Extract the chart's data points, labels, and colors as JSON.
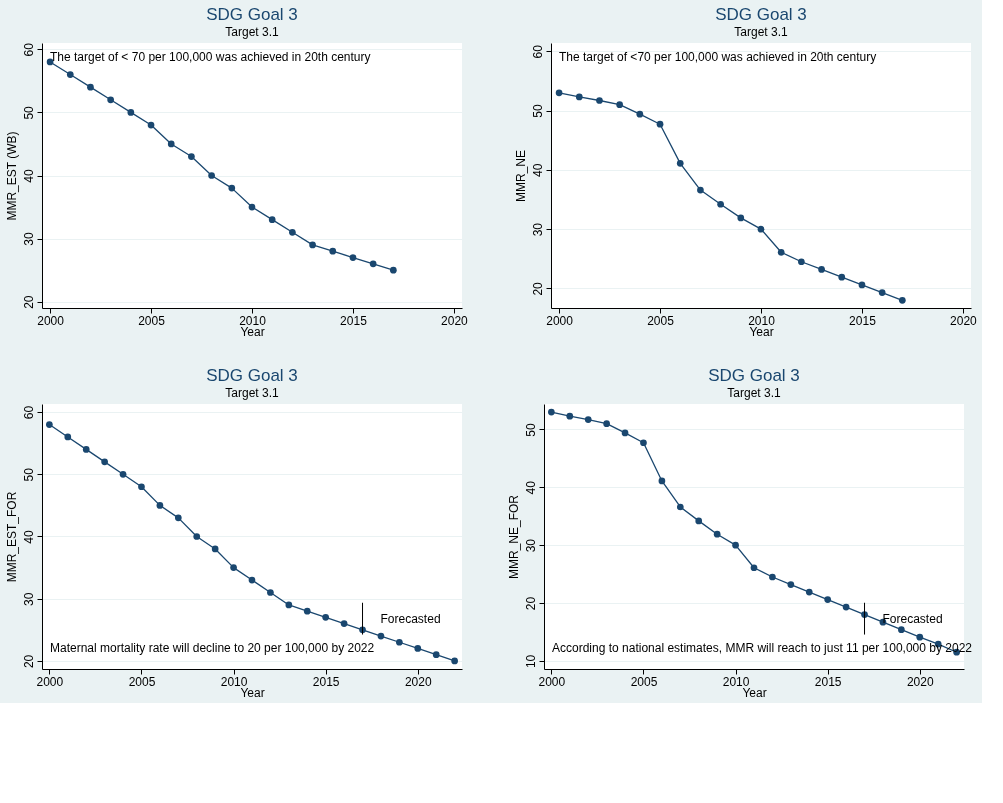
{
  "chart_data": [
    {
      "type": "line",
      "title": "SDG Goal 3",
      "subtitle": "Target 3.1",
      "xlabel": "Year",
      "ylabel": "MMR_EST (WB)",
      "marker": "circle",
      "grid": "y",
      "color": "#1a476f",
      "x": [
        2000,
        2001,
        2002,
        2003,
        2004,
        2005,
        2006,
        2007,
        2008,
        2009,
        2010,
        2011,
        2012,
        2013,
        2014,
        2015,
        2016,
        2017
      ],
      "values": [
        58,
        56,
        54,
        52,
        50,
        48,
        45,
        43,
        40,
        38,
        35,
        33,
        31,
        29,
        28,
        27,
        26,
        25
      ],
      "xlim": [
        1999.6,
        2020.4
      ],
      "ylim": [
        19,
        61
      ],
      "xticks": [
        2000,
        2005,
        2010,
        2015,
        2020
      ],
      "yticks": [
        20,
        30,
        40,
        50,
        60
      ],
      "annotations": [
        "The target of < 70 per 100,000 was achieved in 20th century"
      ]
    },
    {
      "type": "line",
      "title": "SDG Goal 3",
      "subtitle": "Target 3.1",
      "xlabel": "Year",
      "ylabel": "MMR_NE",
      "marker": "circle",
      "grid": "y",
      "color": "#1a476f",
      "x": [
        2000,
        2001,
        2002,
        2003,
        2004,
        2005,
        2006,
        2007,
        2008,
        2009,
        2010,
        2011,
        2012,
        2013,
        2014,
        2015,
        2016,
        2017
      ],
      "values": [
        53,
        52.3,
        51.7,
        51,
        49.4,
        47.7,
        41.1,
        36.6,
        34.2,
        31.9,
        30,
        26.1,
        24.5,
        23.2,
        21.9,
        20.6,
        19.3,
        18
      ],
      "xlim": [
        1999.6,
        2020.4
      ],
      "ylim": [
        16.7,
        61.4
      ],
      "xticks": [
        2000,
        2005,
        2010,
        2015,
        2020
      ],
      "yticks": [
        20,
        30,
        40,
        50,
        60
      ],
      "annotations": [
        "The target of <70 per 100,000 was achieved in 20th century"
      ]
    },
    {
      "type": "line",
      "title": "SDG Goal 3",
      "subtitle": "Target 3.1",
      "xlabel": "Year",
      "ylabel": "MMR_EST_FOR",
      "marker": "circle",
      "grid": "y",
      "color": "#1a476f",
      "x": [
        2000,
        2001,
        2002,
        2003,
        2004,
        2005,
        2006,
        2007,
        2008,
        2009,
        2010,
        2011,
        2012,
        2013,
        2014,
        2015,
        2016,
        2017,
        2018,
        2019,
        2020,
        2021,
        2022
      ],
      "values": [
        58,
        56,
        54,
        52,
        50,
        48,
        45,
        43,
        40,
        38,
        35,
        33,
        31,
        29,
        28,
        27,
        26,
        25,
        24,
        23,
        22,
        21,
        20
      ],
      "xlim": [
        1999.6,
        2022.4
      ],
      "ylim": [
        18.7,
        61.3
      ],
      "xticks": [
        2000,
        2005,
        2010,
        2015,
        2020
      ],
      "yticks": [
        20,
        30,
        40,
        50,
        60
      ],
      "ref_lines": [
        {
          "axis": "x",
          "value": 2017,
          "label": "Forecasted"
        }
      ],
      "annotations": [
        "Maternal mortality rate will decline to 20 per 100,000 by 2022"
      ]
    },
    {
      "type": "line",
      "title": "SDG Goal 3",
      "subtitle": "Target 3.1",
      "xlabel": "Year",
      "ylabel": "MMR_NE_FOR",
      "marker": "circle",
      "grid": "y",
      "color": "#1a476f",
      "x": [
        2000,
        2001,
        2002,
        2003,
        2004,
        2005,
        2006,
        2007,
        2008,
        2009,
        2010,
        2011,
        2012,
        2013,
        2014,
        2015,
        2016,
        2017,
        2018,
        2019,
        2020,
        2021,
        2022
      ],
      "values": [
        53,
        52.3,
        51.7,
        51,
        49.4,
        47.7,
        41.1,
        36.6,
        34.2,
        31.9,
        30,
        26.1,
        24.5,
        23.2,
        21.9,
        20.6,
        19.3,
        18,
        16.7,
        15.4,
        14.1,
        12.9,
        11.5
      ],
      "xlim": [
        1999.6,
        2022.4
      ],
      "ylim": [
        8.6,
        54.4
      ],
      "xticks": [
        2000,
        2005,
        2010,
        2015,
        2020
      ],
      "yticks": [
        10,
        20,
        30,
        40,
        50
      ],
      "ref_lines": [
        {
          "axis": "x",
          "value": 2017,
          "label": "Forecasted"
        }
      ],
      "annotations": [
        "According to national estimates, MMR will reach to just 11 per 100,000 by 2022"
      ]
    }
  ]
}
